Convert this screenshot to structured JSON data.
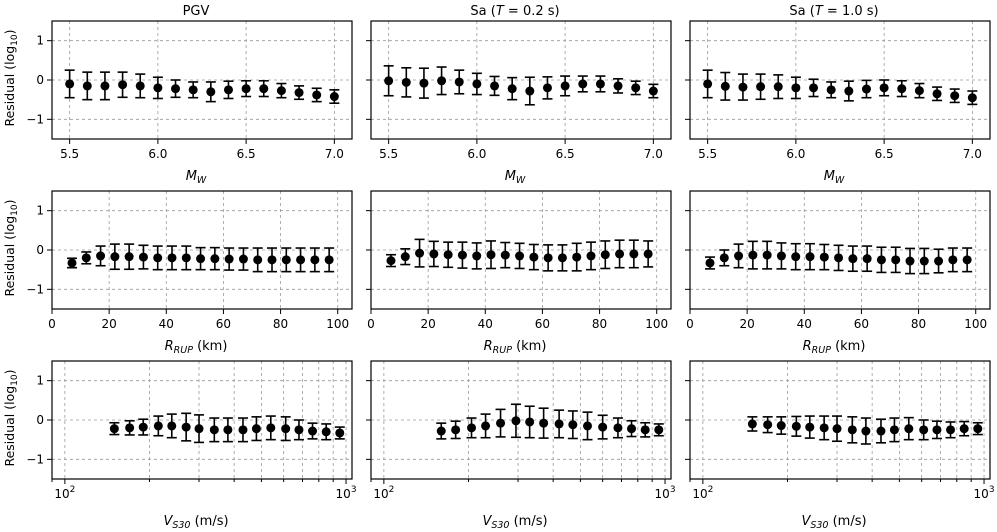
{
  "figure": {
    "y_label": "Residual (log10)",
    "y_label_main": "Residual (log",
    "y_label_sub": "10",
    "y_label_close": ")",
    "y_ticks": [
      1,
      0,
      -1
    ],
    "y_tick_labels": [
      "1",
      "0",
      "−1"
    ],
    "ylim": [
      -1.5,
      1.5
    ]
  },
  "columns": [
    {
      "title_prefix": "PGV",
      "title_var": "",
      "title_suffix": ""
    },
    {
      "title_prefix": "Sa (",
      "title_var": "T",
      "title_suffix": " = 0.2 s)"
    },
    {
      "title_prefix": "Sa (",
      "title_var": "T",
      "title_suffix": " = 1.0 s)"
    }
  ],
  "rows": [
    {
      "scale": "linear",
      "xlim": [
        5.4,
        7.1
      ],
      "x_ticks": [
        5.5,
        6.0,
        6.5,
        7.0
      ],
      "x_tick_labels": [
        "5.5",
        "6.0",
        "6.5",
        "7.0"
      ],
      "xlabel_main": "M",
      "xlabel_sub": "W",
      "xlabel_units": ""
    },
    {
      "scale": "linear",
      "xlim": [
        0,
        105
      ],
      "x_ticks": [
        0,
        20,
        40,
        60,
        80,
        100
      ],
      "x_tick_labels": [
        "0",
        "20",
        "40",
        "60",
        "80",
        "100"
      ],
      "xlabel_main": "R",
      "xlabel_sub": "RUP",
      "xlabel_units": " (km)"
    },
    {
      "scale": "log",
      "xlim": [
        90,
        1050
      ],
      "x_ticks": [
        100,
        1000
      ],
      "x_tick_label_base": "10",
      "x_tick_label_exp": [
        "2",
        "3"
      ],
      "xlabel_main": "V",
      "xlabel_sub": "S30",
      "xlabel_units": " (m/s)"
    }
  ],
  "chart_data": [
    {
      "type": "scatter",
      "panel": "PGV vs M_W",
      "x": [
        5.5,
        5.6,
        5.7,
        5.8,
        5.9,
        6.0,
        6.1,
        6.2,
        6.3,
        6.4,
        6.5,
        6.6,
        6.7,
        6.8,
        6.9,
        7.0
      ],
      "y": [
        -0.1,
        -0.15,
        -0.15,
        -0.12,
        -0.15,
        -0.2,
        -0.22,
        -0.25,
        -0.3,
        -0.25,
        -0.22,
        -0.22,
        -0.27,
        -0.32,
        -0.38,
        -0.42
      ],
      "err": [
        0.35,
        0.35,
        0.35,
        0.32,
        0.3,
        0.27,
        0.22,
        0.2,
        0.25,
        0.22,
        0.2,
        0.2,
        0.18,
        0.17,
        0.17,
        0.17
      ]
    },
    {
      "type": "scatter",
      "panel": "Sa (T=0.2 s) vs M_W",
      "x": [
        5.5,
        5.6,
        5.7,
        5.8,
        5.9,
        6.0,
        6.1,
        6.2,
        6.3,
        6.4,
        6.5,
        6.6,
        6.7,
        6.8,
        6.9,
        7.0
      ],
      "y": [
        -0.02,
        -0.06,
        -0.08,
        -0.02,
        -0.05,
        -0.1,
        -0.15,
        -0.22,
        -0.28,
        -0.2,
        -0.15,
        -0.1,
        -0.1,
        -0.15,
        -0.2,
        -0.28
      ],
      "err": [
        0.38,
        0.37,
        0.38,
        0.35,
        0.3,
        0.27,
        0.24,
        0.28,
        0.35,
        0.28,
        0.25,
        0.2,
        0.2,
        0.18,
        0.17,
        0.17
      ]
    },
    {
      "type": "scatter",
      "panel": "Sa (T=1.0 s) vs M_W",
      "x": [
        5.5,
        5.6,
        5.7,
        5.8,
        5.9,
        6.0,
        6.1,
        6.2,
        6.3,
        6.4,
        6.5,
        6.6,
        6.7,
        6.8,
        6.9,
        7.0
      ],
      "y": [
        -0.1,
        -0.16,
        -0.18,
        -0.17,
        -0.17,
        -0.2,
        -0.2,
        -0.25,
        -0.28,
        -0.23,
        -0.2,
        -0.22,
        -0.27,
        -0.35,
        -0.4,
        -0.45
      ],
      "err": [
        0.35,
        0.35,
        0.33,
        0.32,
        0.3,
        0.27,
        0.22,
        0.2,
        0.25,
        0.22,
        0.2,
        0.2,
        0.18,
        0.17,
        0.17,
        0.17
      ]
    },
    {
      "type": "scatter",
      "panel": "PGV vs R_RUP",
      "x": [
        7,
        12,
        17,
        22,
        27,
        32,
        37,
        42,
        47,
        52,
        57,
        62,
        67,
        72,
        77,
        82,
        87,
        92,
        97
      ],
      "y": [
        -0.33,
        -0.2,
        -0.15,
        -0.17,
        -0.17,
        -0.18,
        -0.2,
        -0.2,
        -0.2,
        -0.22,
        -0.22,
        -0.23,
        -0.23,
        -0.25,
        -0.25,
        -0.25,
        -0.25,
        -0.25,
        -0.25
      ],
      "err": [
        0.12,
        0.15,
        0.25,
        0.32,
        0.32,
        0.3,
        0.3,
        0.3,
        0.3,
        0.28,
        0.28,
        0.28,
        0.28,
        0.3,
        0.3,
        0.3,
        0.3,
        0.3,
        0.3
      ]
    },
    {
      "type": "scatter",
      "panel": "Sa (T=0.2 s) vs R_RUP",
      "x": [
        7,
        12,
        17,
        22,
        27,
        32,
        37,
        42,
        47,
        52,
        57,
        62,
        67,
        72,
        77,
        82,
        87,
        92,
        97
      ],
      "y": [
        -0.27,
        -0.17,
        -0.08,
        -0.1,
        -0.12,
        -0.13,
        -0.15,
        -0.12,
        -0.13,
        -0.15,
        -0.18,
        -0.2,
        -0.2,
        -0.18,
        -0.15,
        -0.12,
        -0.1,
        -0.1,
        -0.1
      ],
      "err": [
        0.15,
        0.2,
        0.35,
        0.32,
        0.32,
        0.33,
        0.33,
        0.35,
        0.32,
        0.32,
        0.32,
        0.33,
        0.33,
        0.35,
        0.35,
        0.35,
        0.35,
        0.35,
        0.33
      ]
    },
    {
      "type": "scatter",
      "panel": "Sa (T=1.0 s) vs R_RUP",
      "x": [
        7,
        12,
        17,
        22,
        27,
        32,
        37,
        42,
        47,
        52,
        57,
        62,
        67,
        72,
        77,
        82,
        87,
        92,
        97
      ],
      "y": [
        -0.33,
        -0.2,
        -0.15,
        -0.13,
        -0.13,
        -0.15,
        -0.17,
        -0.17,
        -0.18,
        -0.2,
        -0.22,
        -0.22,
        -0.25,
        -0.25,
        -0.28,
        -0.28,
        -0.28,
        -0.25,
        -0.25
      ],
      "err": [
        0.15,
        0.2,
        0.3,
        0.35,
        0.35,
        0.33,
        0.33,
        0.33,
        0.32,
        0.32,
        0.32,
        0.32,
        0.32,
        0.32,
        0.32,
        0.32,
        0.3,
        0.3,
        0.3
      ]
    },
    {
      "type": "scatter",
      "panel": "PGV vs V_S30",
      "x": [
        150,
        170,
        190,
        215,
        240,
        270,
        300,
        340,
        380,
        430,
        480,
        540,
        610,
        680,
        760,
        850,
        950
      ],
      "y": [
        -0.22,
        -0.2,
        -0.18,
        -0.15,
        -0.15,
        -0.18,
        -0.22,
        -0.25,
        -0.25,
        -0.25,
        -0.22,
        -0.2,
        -0.22,
        -0.25,
        -0.28,
        -0.3,
        -0.33
      ],
      "err": [
        0.15,
        0.18,
        0.2,
        0.25,
        0.3,
        0.35,
        0.35,
        0.3,
        0.3,
        0.3,
        0.3,
        0.3,
        0.3,
        0.25,
        0.2,
        0.2,
        0.15
      ]
    },
    {
      "type": "scatter",
      "panel": "Sa (T=0.2 s) vs V_S30",
      "x": [
        160,
        180,
        205,
        230,
        260,
        295,
        330,
        370,
        420,
        470,
        530,
        600,
        680,
        760,
        850,
        950
      ],
      "y": [
        -0.28,
        -0.25,
        -0.2,
        -0.15,
        -0.08,
        -0.02,
        -0.05,
        -0.08,
        -0.1,
        -0.12,
        -0.15,
        -0.18,
        -0.2,
        -0.22,
        -0.25,
        -0.25
      ],
      "err": [
        0.2,
        0.22,
        0.25,
        0.3,
        0.35,
        0.42,
        0.4,
        0.38,
        0.35,
        0.35,
        0.35,
        0.3,
        0.25,
        0.2,
        0.18,
        0.15
      ]
    },
    {
      "type": "scatter",
      "panel": "Sa (T=1.0 s) vs V_S30",
      "x": [
        150,
        170,
        190,
        215,
        240,
        270,
        300,
        340,
        380,
        430,
        480,
        540,
        610,
        680,
        760,
        850,
        950
      ],
      "y": [
        -0.1,
        -0.12,
        -0.14,
        -0.16,
        -0.18,
        -0.2,
        -0.22,
        -0.25,
        -0.28,
        -0.28,
        -0.25,
        -0.22,
        -0.25,
        -0.25,
        -0.25,
        -0.22,
        -0.22
      ],
      "err": [
        0.18,
        0.2,
        0.22,
        0.25,
        0.28,
        0.3,
        0.32,
        0.33,
        0.33,
        0.3,
        0.3,
        0.28,
        0.25,
        0.22,
        0.2,
        0.18,
        0.15
      ]
    }
  ]
}
